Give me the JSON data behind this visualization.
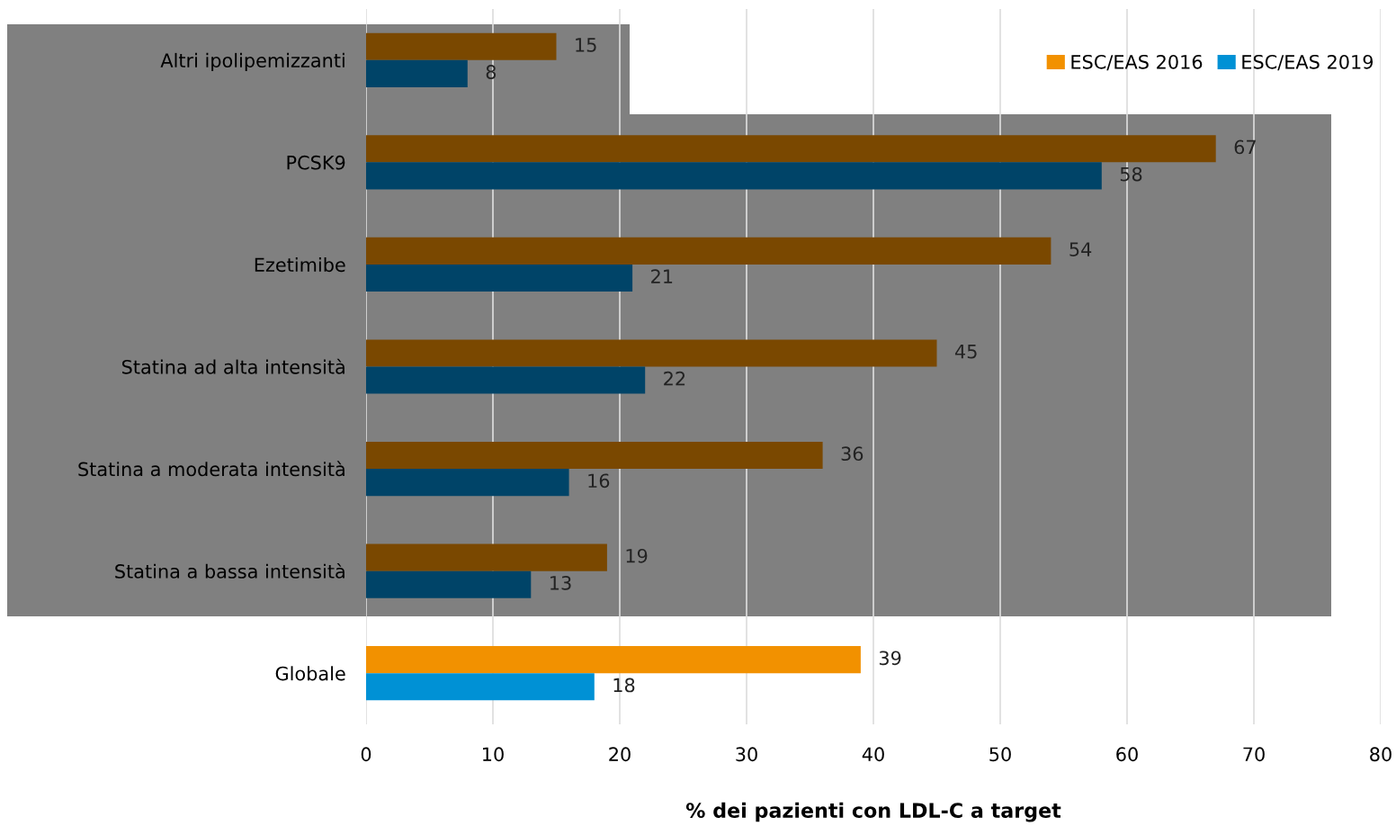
{
  "chart_data": {
    "type": "bar",
    "orientation": "horizontal",
    "xlabel": "% dei pazienti con LDL-C a target",
    "categories": [
      "Altri ipolipemizzanti",
      "PCSK9",
      "Ezetimibe",
      "Statina ad alta intensità",
      "Statina a moderata intensità",
      "Statina a bassa intensità",
      "Globale"
    ],
    "series": [
      {
        "name": "ESC/EAS 2016",
        "color": "#f29100",
        "colors": [
          "#7a4800",
          "#7a4800",
          "#7a4800",
          "#7a4800",
          "#7a4800",
          "#7a4800",
          "#f29100"
        ],
        "values": [
          15,
          67,
          54,
          45,
          36,
          19,
          39
        ]
      },
      {
        "name": "ESC/EAS 2019",
        "color": "#0091d5",
        "colors": [
          "#004468",
          "#004468",
          "#004468",
          "#004468",
          "#004468",
          "#004468",
          "#0091d5"
        ],
        "values": [
          8,
          58,
          21,
          22,
          16,
          13,
          18
        ]
      }
    ],
    "xlim": [
      0,
      80
    ],
    "xticks": [
      0,
      10,
      20,
      30,
      40,
      50,
      60,
      70,
      80
    ],
    "grid": "x",
    "legend": "top right",
    "data_labels": true
  }
}
